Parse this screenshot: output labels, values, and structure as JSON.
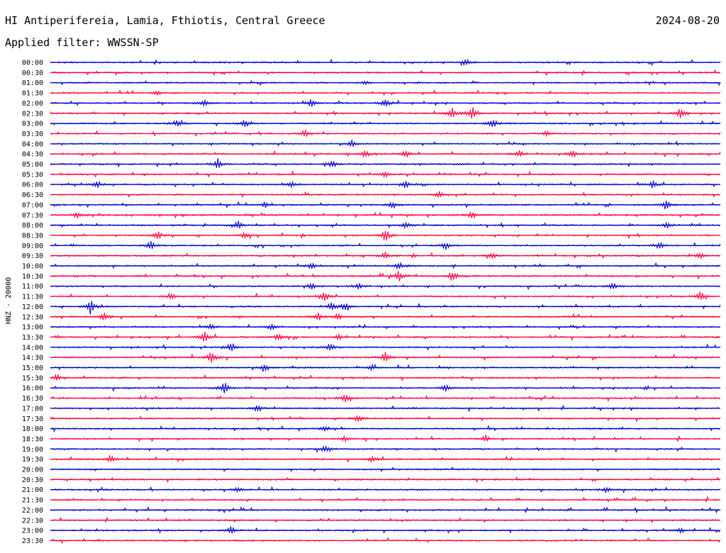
{
  "header": {
    "station": "HI Antiperifereia, Lamia, Fthiotis, Central Greece",
    "date": "2024-08-20",
    "filter_label": "Applied filter:",
    "filter_value": "WWSSN-SP"
  },
  "colors": {
    "trace_a": "#0000cc",
    "trace_b": "#ff0040",
    "text": "#000000"
  },
  "chart_data": {
    "type": "line",
    "title": "HI Antiperifereia, Lamia, Fthiotis, Central Greece",
    "ylabel": "HNZ - 20000",
    "row_labels": [
      "00:00",
      "00:30",
      "01:00",
      "01:30",
      "02:00",
      "02:30",
      "03:00",
      "03:30",
      "04:00",
      "04:30",
      "05:00",
      "05:30",
      "06:00",
      "06:30",
      "07:00",
      "07:30",
      "08:00",
      "08:30",
      "09:00",
      "09:30",
      "10:00",
      "10:30",
      "11:00",
      "11:30",
      "12:00",
      "12:30",
      "13:00",
      "13:30",
      "14:00",
      "14:30",
      "15:00",
      "15:30",
      "16:00",
      "16:30",
      "17:00",
      "17:30",
      "18:00",
      "18:30",
      "19:00",
      "19:30",
      "20:00",
      "20:30",
      "21:00",
      "21:30",
      "22:00",
      "22:30",
      "23:00",
      "23:30"
    ],
    "events": [
      {
        "row": 0,
        "t": 0.62,
        "amp": 0.5
      },
      {
        "row": 2,
        "t": 0.47,
        "amp": 0.3
      },
      {
        "row": 3,
        "t": 0.16,
        "amp": 0.35
      },
      {
        "row": 4,
        "t": 0.23,
        "amp": 0.5
      },
      {
        "row": 4,
        "t": 0.39,
        "amp": 0.6
      },
      {
        "row": 4,
        "t": 0.5,
        "amp": 0.7
      },
      {
        "row": 5,
        "t": 0.6,
        "amp": 0.8
      },
      {
        "row": 5,
        "t": 0.63,
        "amp": 1.0
      },
      {
        "row": 5,
        "t": 0.94,
        "amp": 0.9
      },
      {
        "row": 6,
        "t": 0.19,
        "amp": 0.5
      },
      {
        "row": 6,
        "t": 0.29,
        "amp": 0.6
      },
      {
        "row": 6,
        "t": 0.66,
        "amp": 0.8
      },
      {
        "row": 7,
        "t": 0.38,
        "amp": 0.6
      },
      {
        "row": 7,
        "t": 0.74,
        "amp": 0.5
      },
      {
        "row": 8,
        "t": 0.45,
        "amp": 0.6
      },
      {
        "row": 9,
        "t": 0.47,
        "amp": 0.5
      },
      {
        "row": 9,
        "t": 0.53,
        "amp": 0.6
      },
      {
        "row": 9,
        "t": 0.7,
        "amp": 0.5
      },
      {
        "row": 9,
        "t": 0.78,
        "amp": 0.5
      },
      {
        "row": 10,
        "t": 0.25,
        "amp": 0.7
      },
      {
        "row": 10,
        "t": 0.42,
        "amp": 0.6
      },
      {
        "row": 11,
        "t": 0.5,
        "amp": 0.5
      },
      {
        "row": 12,
        "t": 0.07,
        "amp": 0.5
      },
      {
        "row": 12,
        "t": 0.36,
        "amp": 0.5
      },
      {
        "row": 12,
        "t": 0.53,
        "amp": 0.6
      },
      {
        "row": 12,
        "t": 0.9,
        "amp": 0.6
      },
      {
        "row": 13,
        "t": 0.58,
        "amp": 0.5
      },
      {
        "row": 14,
        "t": 0.32,
        "amp": 0.4
      },
      {
        "row": 14,
        "t": 0.51,
        "amp": 0.5
      },
      {
        "row": 14,
        "t": 0.92,
        "amp": 0.7
      },
      {
        "row": 15,
        "t": 0.04,
        "amp": 0.5
      },
      {
        "row": 15,
        "t": 0.63,
        "amp": 0.6
      },
      {
        "row": 16,
        "t": 0.28,
        "amp": 0.6
      },
      {
        "row": 16,
        "t": 0.53,
        "amp": 0.5
      },
      {
        "row": 16,
        "t": 0.92,
        "amp": 0.5
      },
      {
        "row": 17,
        "t": 0.16,
        "amp": 0.7
      },
      {
        "row": 17,
        "t": 0.29,
        "amp": 0.5
      },
      {
        "row": 17,
        "t": 0.5,
        "amp": 1.0
      },
      {
        "row": 18,
        "t": 0.15,
        "amp": 0.6
      },
      {
        "row": 18,
        "t": 0.59,
        "amp": 0.6
      },
      {
        "row": 18,
        "t": 0.91,
        "amp": 0.5
      },
      {
        "row": 19,
        "t": 0.5,
        "amp": 0.6
      },
      {
        "row": 19,
        "t": 0.66,
        "amp": 0.5
      },
      {
        "row": 19,
        "t": 0.97,
        "amp": 0.5
      },
      {
        "row": 20,
        "t": 0.39,
        "amp": 0.5
      },
      {
        "row": 20,
        "t": 0.52,
        "amp": 0.6
      },
      {
        "row": 21,
        "t": 0.52,
        "amp": 0.9
      },
      {
        "row": 21,
        "t": 0.6,
        "amp": 0.7
      },
      {
        "row": 22,
        "t": 0.39,
        "amp": 0.5
      },
      {
        "row": 22,
        "t": 0.46,
        "amp": 0.5
      },
      {
        "row": 22,
        "t": 0.84,
        "amp": 0.6
      },
      {
        "row": 23,
        "t": 0.18,
        "amp": 0.6
      },
      {
        "row": 23,
        "t": 0.41,
        "amp": 0.7
      },
      {
        "row": 23,
        "t": 0.97,
        "amp": 0.8
      },
      {
        "row": 24,
        "t": 0.06,
        "amp": 1.0
      },
      {
        "row": 24,
        "t": 0.42,
        "amp": 0.6
      },
      {
        "row": 24,
        "t": 0.44,
        "amp": 0.7
      },
      {
        "row": 25,
        "t": 0.08,
        "amp": 0.6
      },
      {
        "row": 25,
        "t": 0.4,
        "amp": 0.6
      },
      {
        "row": 25,
        "t": 0.43,
        "amp": 0.5
      },
      {
        "row": 26,
        "t": 0.24,
        "amp": 0.4
      },
      {
        "row": 26,
        "t": 0.33,
        "amp": 0.4
      },
      {
        "row": 27,
        "t": 0.23,
        "amp": 0.9
      },
      {
        "row": 27,
        "t": 0.34,
        "amp": 0.6
      },
      {
        "row": 27,
        "t": 0.43,
        "amp": 0.5
      },
      {
        "row": 28,
        "t": 0.27,
        "amp": 0.7
      },
      {
        "row": 28,
        "t": 0.42,
        "amp": 0.5
      },
      {
        "row": 29,
        "t": 0.24,
        "amp": 1.0
      },
      {
        "row": 29,
        "t": 0.5,
        "amp": 0.8
      },
      {
        "row": 30,
        "t": 0.32,
        "amp": 0.5
      },
      {
        "row": 30,
        "t": 0.48,
        "amp": 0.4
      },
      {
        "row": 31,
        "t": 0.01,
        "amp": 0.5
      },
      {
        "row": 32,
        "t": 0.26,
        "amp": 0.9
      },
      {
        "row": 32,
        "t": 0.59,
        "amp": 0.5
      },
      {
        "row": 33,
        "t": 0.44,
        "amp": 0.7
      },
      {
        "row": 34,
        "t": 0.31,
        "amp": 0.5
      },
      {
        "row": 35,
        "t": 0.46,
        "amp": 0.5
      },
      {
        "row": 36,
        "t": 0.41,
        "amp": 0.4
      },
      {
        "row": 37,
        "t": 0.44,
        "amp": 0.4
      },
      {
        "row": 37,
        "t": 0.65,
        "amp": 0.6
      },
      {
        "row": 38,
        "t": 0.41,
        "amp": 0.5
      },
      {
        "row": 39,
        "t": 0.09,
        "amp": 0.6
      },
      {
        "row": 39,
        "t": 0.48,
        "amp": 0.5
      },
      {
        "row": 42,
        "t": 0.28,
        "amp": 0.4
      },
      {
        "row": 42,
        "t": 0.83,
        "amp": 0.4
      },
      {
        "row": 46,
        "t": 0.27,
        "amp": 0.6
      },
      {
        "row": 46,
        "t": 0.94,
        "amp": 0.4
      }
    ]
  }
}
